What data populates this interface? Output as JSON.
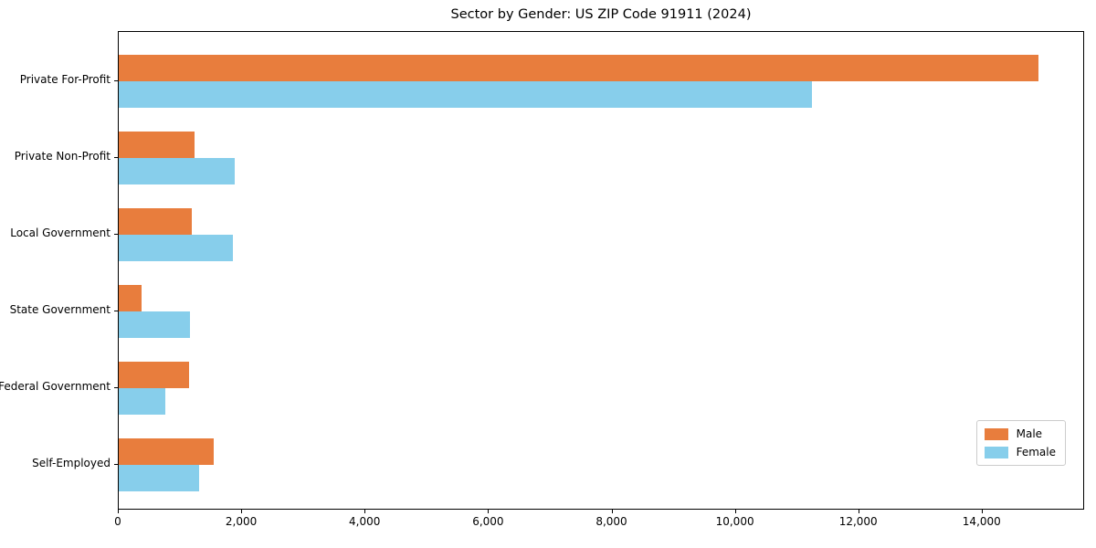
{
  "title": "Sector by Gender: US ZIP Code 91911 (2024)",
  "colors": {
    "male": "#e87d3d",
    "female": "#87ceeb",
    "axis": "#000000",
    "background": "#ffffff",
    "legend_border": "#cccccc"
  },
  "legend": {
    "items": [
      {
        "label": "Male",
        "color": "#e87d3d"
      },
      {
        "label": "Female",
        "color": "#87ceeb"
      }
    ],
    "position": "lower right"
  },
  "chart_data": {
    "type": "bar",
    "orientation": "horizontal",
    "title": "Sector by Gender: US ZIP Code 91911 (2024)",
    "categories": [
      "Private For-Profit",
      "Private Non-Profit",
      "Local Government",
      "State Government",
      "Federal Government",
      "Self-Employed"
    ],
    "series": [
      {
        "name": "Male",
        "color": "#e87d3d",
        "values": [
          14900,
          1230,
          1190,
          370,
          1135,
          1540
        ]
      },
      {
        "name": "Female",
        "color": "#87ceeb",
        "values": [
          11240,
          1875,
          1845,
          1150,
          750,
          1300
        ]
      }
    ],
    "xlabel": "",
    "ylabel": "",
    "xlim": [
      0,
      15660
    ],
    "xticks": [
      0,
      2000,
      4000,
      6000,
      8000,
      10000,
      12000,
      14000
    ],
    "xtick_labels": [
      "0",
      "2,000",
      "4,000",
      "6,000",
      "8,000",
      "10,000",
      "12,000",
      "14,000"
    ],
    "grid": false,
    "legend_position": "lower right"
  }
}
